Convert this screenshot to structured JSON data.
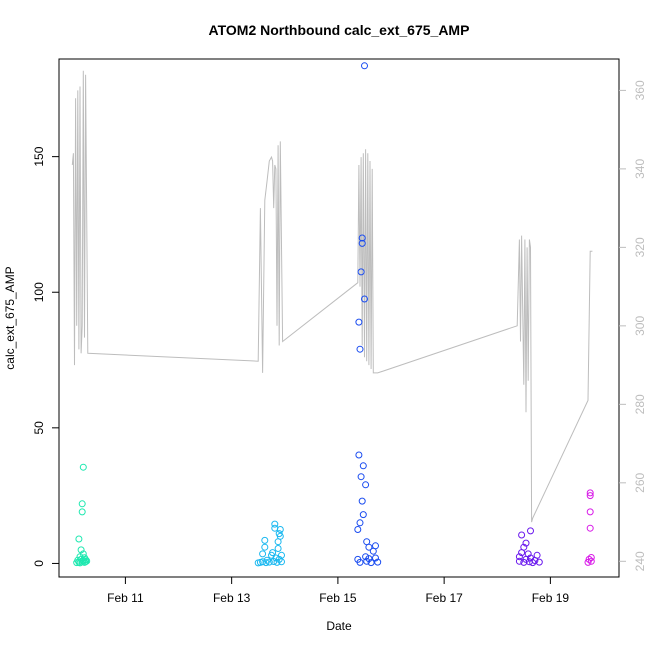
{
  "chart_data": {
    "type": "scatter",
    "title": "ATOM2 Northbound calc_ext_675_AMP",
    "xlabel": "Date",
    "ylabel": "calc_ext_675_AMP",
    "xlim": [
      "2024-02-09 18:00",
      "2024-02-20 07:00"
    ],
    "ylim": [
      -5,
      186
    ],
    "y2lim": [
      236,
      368
    ],
    "x_ticks": [
      {
        "label": "Feb 11",
        "value": "2024-02-11"
      },
      {
        "label": "Feb 13",
        "value": "2024-02-13"
      },
      {
        "label": "Feb 15",
        "value": "2024-02-15"
      },
      {
        "label": "Feb 17",
        "value": "2024-02-17"
      },
      {
        "label": "Feb 19",
        "value": "2024-02-19"
      }
    ],
    "y_ticks": [
      0,
      50,
      100,
      150
    ],
    "y2_ticks": [
      240,
      260,
      280,
      300,
      320,
      340,
      360
    ],
    "grid": false,
    "secondary_line_color": "#bdbdbd",
    "series": [
      {
        "color": "#1ee8b0",
        "points": [
          [
            "2024-02-10 02:00",
            0.3
          ],
          [
            "2024-02-10 02:30",
            1.2
          ],
          [
            "2024-02-10 03:00",
            0.5
          ],
          [
            "2024-02-10 03:00",
            9
          ],
          [
            "2024-02-10 03:30",
            2.5
          ],
          [
            "2024-02-10 03:30",
            0.2
          ],
          [
            "2024-02-10 04:00",
            5
          ],
          [
            "2024-02-10 04:00",
            1.5
          ],
          [
            "2024-02-10 04:30",
            0.8
          ],
          [
            "2024-02-10 04:30",
            19
          ],
          [
            "2024-02-10 04:30",
            22
          ],
          [
            "2024-02-10 05:00",
            35.5
          ],
          [
            "2024-02-10 05:00",
            3.5
          ],
          [
            "2024-02-10 05:00",
            1.1
          ],
          [
            "2024-02-10 05:30",
            0.4
          ],
          [
            "2024-02-10 05:30",
            2.1
          ],
          [
            "2024-02-10 06:00",
            0.6
          ],
          [
            "2024-02-10 06:00",
            1.4
          ],
          [
            "2024-02-10 06:30",
            0.9
          ]
        ]
      },
      {
        "color": "#1ab8f0",
        "points": [
          [
            "2024-02-13 12:00",
            0.2
          ],
          [
            "2024-02-13 13:00",
            0.4
          ],
          [
            "2024-02-13 14:00",
            3.5
          ],
          [
            "2024-02-13 14:00",
            0.6
          ],
          [
            "2024-02-13 15:00",
            6
          ],
          [
            "2024-02-13 15:00",
            8.5
          ],
          [
            "2024-02-13 15:30",
            0.3
          ],
          [
            "2024-02-13 16:00",
            1.2
          ],
          [
            "2024-02-13 17:00",
            0.5
          ],
          [
            "2024-02-13 18:00",
            3
          ],
          [
            "2024-02-13 18:30",
            4
          ],
          [
            "2024-02-13 19:00",
            0.7
          ],
          [
            "2024-02-13 19:30",
            13
          ],
          [
            "2024-02-13 19:30",
            14.5
          ],
          [
            "2024-02-13 20:00",
            2
          ],
          [
            "2024-02-13 20:30",
            0.4
          ],
          [
            "2024-02-13 21:00",
            5.5
          ],
          [
            "2024-02-13 21:00",
            8
          ],
          [
            "2024-02-13 21:30",
            11
          ],
          [
            "2024-02-13 21:30",
            1.5
          ],
          [
            "2024-02-13 22:00",
            10
          ],
          [
            "2024-02-13 22:00",
            12.5
          ],
          [
            "2024-02-13 22:30",
            0.6
          ],
          [
            "2024-02-13 22:30",
            3
          ]
        ]
      },
      {
        "color": "#1a4cf0",
        "points": [
          [
            "2024-02-15 09:00",
            1.5
          ],
          [
            "2024-02-15 09:00",
            12.5
          ],
          [
            "2024-02-15 09:30",
            40
          ],
          [
            "2024-02-15 09:30",
            89
          ],
          [
            "2024-02-15 10:00",
            79
          ],
          [
            "2024-02-15 10:00",
            15
          ],
          [
            "2024-02-15 10:00",
            0.4
          ],
          [
            "2024-02-15 10:30",
            107.5
          ],
          [
            "2024-02-15 10:30",
            32
          ],
          [
            "2024-02-15 11:00",
            120
          ],
          [
            "2024-02-15 11:00",
            118
          ],
          [
            "2024-02-15 11:00",
            23
          ],
          [
            "2024-02-15 11:30",
            36
          ],
          [
            "2024-02-15 11:30",
            18
          ],
          [
            "2024-02-15 12:00",
            183.5
          ],
          [
            "2024-02-15 12:00",
            97.5
          ],
          [
            "2024-02-15 12:30",
            29
          ],
          [
            "2024-02-15 12:30",
            2.5
          ],
          [
            "2024-02-15 13:00",
            0.8
          ],
          [
            "2024-02-15 13:00",
            8
          ],
          [
            "2024-02-15 14:00",
            6
          ],
          [
            "2024-02-15 14:00",
            1.8
          ],
          [
            "2024-02-15 15:00",
            0.3
          ],
          [
            "2024-02-15 16:00",
            4.5
          ],
          [
            "2024-02-15 17:00",
            6.5
          ],
          [
            "2024-02-15 17:00",
            2
          ],
          [
            "2024-02-15 18:00",
            0.5
          ]
        ]
      },
      {
        "color": "#6a18ee",
        "points": [
          [
            "2024-02-18 10:00",
            0.8
          ],
          [
            "2024-02-18 10:00",
            2.5
          ],
          [
            "2024-02-18 11:00",
            4
          ],
          [
            "2024-02-18 11:00",
            10.5
          ],
          [
            "2024-02-18 12:00",
            0.4
          ],
          [
            "2024-02-18 12:00",
            6
          ],
          [
            "2024-02-18 13:00",
            7.5
          ],
          [
            "2024-02-18 13:00",
            1.5
          ],
          [
            "2024-02-18 14:00",
            3.5
          ],
          [
            "2024-02-18 14:30",
            0.6
          ],
          [
            "2024-02-18 15:00",
            12
          ],
          [
            "2024-02-18 15:00",
            2
          ],
          [
            "2024-02-18 16:00",
            0.3
          ],
          [
            "2024-02-18 17:00",
            1.1
          ],
          [
            "2024-02-18 18:00",
            3
          ],
          [
            "2024-02-18 19:00",
            0.5
          ]
        ]
      },
      {
        "color": "#d81ae8",
        "points": [
          [
            "2024-02-19 17:00",
            0.4
          ],
          [
            "2024-02-19 17:30",
            1.5
          ],
          [
            "2024-02-19 18:00",
            13
          ],
          [
            "2024-02-19 18:00",
            19
          ],
          [
            "2024-02-19 18:00",
            25
          ],
          [
            "2024-02-19 18:00",
            26
          ],
          [
            "2024-02-19 18:30",
            2.2
          ],
          [
            "2024-02-19 18:30",
            0.8
          ]
        ]
      }
    ],
    "secondary_line": {
      "axis": "right",
      "color": "#bdbdbd",
      "points": [
        [
          "2024-02-10 00:00",
          341
        ],
        [
          "2024-02-10 00:30",
          344
        ],
        [
          "2024-02-10 01:00",
          290
        ],
        [
          "2024-02-10 01:30",
          358
        ],
        [
          "2024-02-10 02:00",
          300
        ],
        [
          "2024-02-10 02:30",
          360
        ],
        [
          "2024-02-10 03:00",
          294
        ],
        [
          "2024-02-10 03:30",
          361
        ],
        [
          "2024-02-10 04:00",
          293
        ],
        [
          "2024-02-10 04:30",
          300
        ],
        [
          "2024-02-10 05:00",
          365
        ],
        [
          "2024-02-10 05:30",
          297
        ],
        [
          "2024-02-10 06:00",
          364
        ],
        [
          "2024-02-10 07:00",
          293
        ],
        [
          "2024-02-13 12:00",
          291
        ],
        [
          "2024-02-13 13:00",
          330
        ],
        [
          "2024-02-13 14:00",
          288
        ],
        [
          "2024-02-13 15:00",
          332
        ],
        [
          "2024-02-13 16:00",
          337
        ],
        [
          "2024-02-13 17:00",
          342
        ],
        [
          "2024-02-13 18:00",
          343
        ],
        [
          "2024-02-13 18:30",
          342
        ],
        [
          "2024-02-13 19:00",
          330
        ],
        [
          "2024-02-13 19:30",
          341
        ],
        [
          "2024-02-13 20:00",
          340
        ],
        [
          "2024-02-13 20:30",
          300
        ],
        [
          "2024-02-13 21:00",
          346
        ],
        [
          "2024-02-13 21:30",
          295
        ],
        [
          "2024-02-13 22:00",
          347
        ],
        [
          "2024-02-13 23:00",
          296
        ],
        [
          "2024-02-15 09:00",
          311
        ],
        [
          "2024-02-15 09:30",
          341
        ],
        [
          "2024-02-15 10:00",
          310
        ],
        [
          "2024-02-15 10:30",
          343
        ],
        [
          "2024-02-15 11:00",
          295
        ],
        [
          "2024-02-15 11:30",
          344
        ],
        [
          "2024-02-15 12:00",
          292
        ],
        [
          "2024-02-15 12:30",
          345
        ],
        [
          "2024-02-15 13:00",
          291
        ],
        [
          "2024-02-15 13:30",
          344
        ],
        [
          "2024-02-15 14:00",
          290
        ],
        [
          "2024-02-15 14:30",
          342
        ],
        [
          "2024-02-15 15:00",
          289
        ],
        [
          "2024-02-15 15:30",
          340
        ],
        [
          "2024-02-15 16:00",
          288
        ],
        [
          "2024-02-15 18:00",
          288
        ],
        [
          "2024-02-18 09:00",
          300
        ],
        [
          "2024-02-18 10:00",
          322
        ],
        [
          "2024-02-18 10:30",
          296
        ],
        [
          "2024-02-18 11:00",
          323
        ],
        [
          "2024-02-18 12:00",
          285
        ],
        [
          "2024-02-18 12:30",
          322
        ],
        [
          "2024-02-18 13:00",
          278
        ],
        [
          "2024-02-18 13:30",
          320
        ],
        [
          "2024-02-18 14:00",
          286
        ],
        [
          "2024-02-18 14:30",
          322
        ],
        [
          "2024-02-18 15:00",
          320
        ],
        [
          "2024-02-18 15:30",
          250
        ],
        [
          "2024-02-18 16:00",
          251
        ],
        [
          "2024-02-19 17:00",
          281
        ],
        [
          "2024-02-19 18:00",
          319
        ],
        [
          "2024-02-19 19:00",
          319
        ]
      ]
    }
  }
}
